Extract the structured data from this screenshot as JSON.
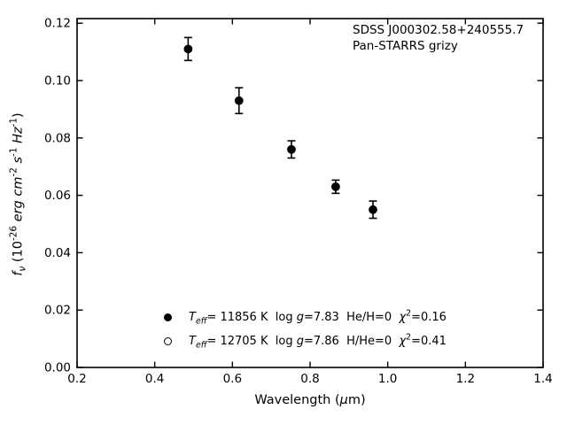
{
  "figure": {
    "background": "#ffffff",
    "axis_color": "#000000",
    "text_color": "#000000"
  },
  "chart_data": {
    "type": "scatter",
    "title": "",
    "xlabel": "Wavelength (*μ*m)",
    "ylabel": "*f*_{*ν*} (10^{-26} *erg* *cm*^{-2} *s*^{-1} *Hz*^{-1})",
    "xlim": [
      0.2,
      1.4
    ],
    "ylim": [
      0.0,
      0.1216
    ],
    "xticks": {
      "values": [
        0.2,
        0.4,
        0.6,
        0.8,
        1.0,
        1.2,
        1.4
      ],
      "labels": [
        "0.2",
        "0.4",
        "0.6",
        "0.8",
        "1.0",
        "1.2",
        "1.4"
      ]
    },
    "yticks": {
      "values": [
        0.0,
        0.02,
        0.04,
        0.06,
        0.08,
        0.1,
        0.12
      ],
      "labels": [
        "0.00",
        "0.02",
        "0.04",
        "0.06",
        "0.08",
        "0.10",
        "0.12"
      ]
    },
    "grid": false,
    "tick_direction": "in",
    "tick_sides": [
      "bottom",
      "top",
      "left",
      "right"
    ],
    "annotation": {
      "lines": [
        "SDSS J000302.58+240555.7",
        "Pan-STARRS grizy"
      ],
      "position": "upper right"
    },
    "series": [
      {
        "name": "*T*_{*eff*}= 11856 K  log *g*=7.83  He/H=0  *χ*^{2}=0.16",
        "marker": "filled-circle",
        "color": "#000000",
        "points_visible": true,
        "x": [
          0.486,
          0.617,
          0.752,
          0.866,
          0.962
        ],
        "y": [
          0.111,
          0.093,
          0.076,
          0.063,
          0.055
        ],
        "yerr": [
          0.004,
          0.0045,
          0.003,
          0.0023,
          0.003
        ]
      },
      {
        "name": "*T*_{*eff*}= 12705 K  log *g*=7.86  H/He=0  *χ*^{2}=0.41",
        "marker": "open-circle",
        "color": "#000000",
        "points_visible": false,
        "x": [],
        "y": [],
        "yerr": []
      }
    ],
    "legend": {
      "position": "lower center",
      "frame": false
    }
  }
}
